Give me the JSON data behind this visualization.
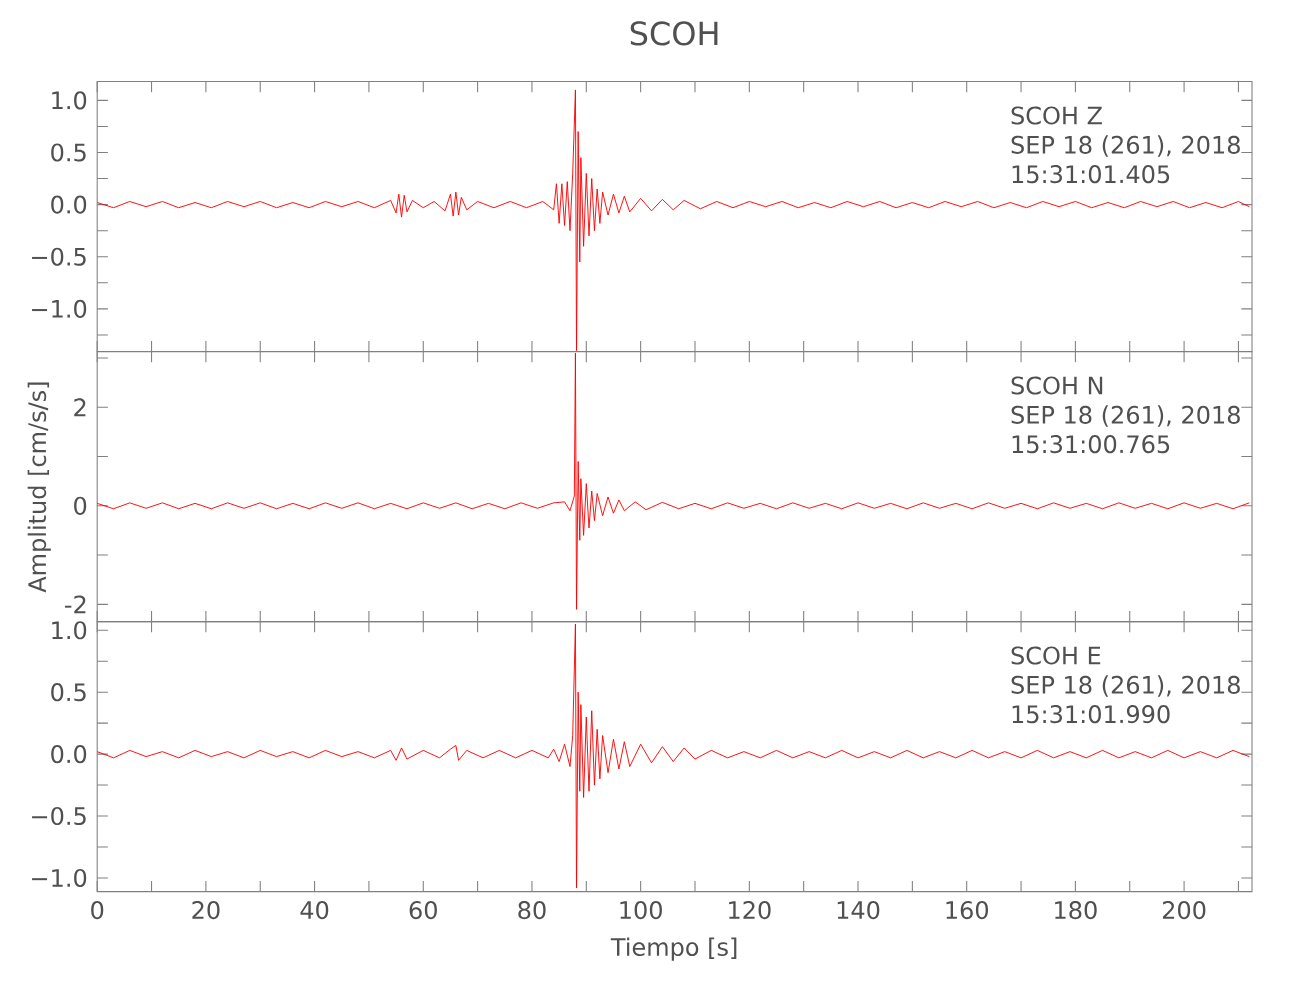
{
  "chart_data": [
    {
      "type": "line",
      "title": "SCOH",
      "annotations": [
        "SCOH   Z",
        "SEP 18 (261), 2018",
        "15:31:01.405"
      ],
      "color": "#ff0000",
      "tick_labels": "y",
      "xlim": [
        0,
        212.5
      ],
      "ylim": [
        -1.41,
        1.18
      ],
      "xticks": [
        0,
        {
          "value": 10,
          "label": null
        },
        20,
        {
          "value": 30,
          "label": null
        },
        40,
        {
          "value": 50,
          "label": null
        },
        60,
        {
          "value": 70,
          "label": null
        },
        80,
        {
          "value": 90,
          "label": null
        },
        100,
        {
          "value": 110,
          "label": null
        },
        120,
        {
          "value": 130,
          "label": null
        },
        140,
        {
          "value": 150,
          "label": null
        },
        160,
        {
          "value": 170,
          "label": null
        },
        180,
        {
          "value": 190,
          "label": null
        },
        200,
        {
          "value": 210,
          "label": null
        }
      ],
      "yticks": [
        {
          "value": -1.25,
          "label": null
        },
        {
          "value": -1.0,
          "label": "−1.0"
        },
        {
          "value": -0.75,
          "label": null
        },
        {
          "value": -0.5,
          "label": "−0.5"
        },
        {
          "value": -0.25,
          "label": null
        },
        {
          "value": 0,
          "label": "0.0"
        },
        {
          "value": 0.25,
          "label": null
        },
        {
          "value": 0.5,
          "label": "0.5"
        },
        {
          "value": 0.75,
          "label": null
        },
        {
          "value": 1.0,
          "label": "1.0"
        }
      ],
      "x": [
        0,
        3,
        6,
        9,
        12,
        15,
        18,
        21,
        24,
        27,
        30,
        33,
        36,
        39,
        42,
        45,
        48,
        51,
        54,
        55,
        55.5,
        56,
        56.5,
        57,
        58,
        60,
        62,
        64,
        65,
        65.5,
        66,
        66.5,
        67,
        68,
        70,
        73,
        76,
        79,
        82,
        84,
        84.5,
        85,
        85.5,
        86,
        86.5,
        87,
        87.5,
        88,
        88.2,
        88.5,
        88.8,
        89,
        89.5,
        90,
        90.5,
        91,
        91.5,
        92,
        92.5,
        93,
        94,
        95,
        96,
        97,
        98,
        100,
        102,
        104,
        106,
        108,
        111,
        114,
        117,
        120,
        123,
        126,
        129,
        132,
        135,
        138,
        141,
        144,
        147,
        150,
        153,
        156,
        159,
        162,
        165,
        168,
        171,
        174,
        177,
        180,
        183,
        186,
        189,
        192,
        195,
        198,
        201,
        204,
        207,
        210,
        212
      ],
      "values": [
        0.02,
        -0.03,
        0.03,
        -0.02,
        0.03,
        -0.03,
        0.02,
        -0.03,
        0.03,
        -0.02,
        0.03,
        -0.03,
        0.02,
        -0.03,
        0.03,
        -0.02,
        0.03,
        -0.03,
        0.04,
        -0.08,
        0.1,
        -0.12,
        0.09,
        -0.07,
        0.04,
        -0.03,
        0.03,
        -0.06,
        0.1,
        -0.11,
        0.12,
        -0.1,
        0.07,
        -0.05,
        0.03,
        -0.03,
        0.03,
        -0.03,
        0.03,
        -0.05,
        0.2,
        -0.18,
        0.2,
        -0.2,
        0.22,
        -0.25,
        0.3,
        1.1,
        -1.4,
        0.7,
        -0.55,
        0.45,
        -0.4,
        0.3,
        -0.3,
        0.25,
        -0.25,
        0.15,
        -0.18,
        0.12,
        -0.1,
        0.1,
        -0.08,
        0.08,
        -0.07,
        0.06,
        -0.06,
        0.05,
        -0.05,
        0.04,
        -0.04,
        0.03,
        -0.03,
        0.03,
        -0.02,
        0.03,
        -0.03,
        0.02,
        -0.03,
        0.03,
        -0.02,
        0.03,
        -0.03,
        0.02,
        -0.03,
        0.03,
        -0.02,
        0.03,
        -0.03,
        0.02,
        -0.03,
        0.03,
        -0.02,
        0.03,
        -0.03,
        0.02,
        -0.03,
        0.03,
        -0.02,
        0.03,
        -0.03,
        0.02,
        -0.03,
        0.03,
        -0.02
      ]
    },
    {
      "type": "line",
      "ylabel": "Amplitud [cm/s/s]",
      "annotations": [
        "SCOH   N",
        "SEP 18 (261), 2018",
        "15:31:00.765"
      ],
      "color": "#ff0000",
      "tick_labels": "y",
      "xlim": [
        0,
        212.5
      ],
      "ylim": [
        -2.35,
        3.13
      ],
      "xticks": [
        0,
        {
          "value": 10,
          "label": null
        },
        20,
        {
          "value": 30,
          "label": null
        },
        40,
        {
          "value": 50,
          "label": null
        },
        60,
        {
          "value": 70,
          "label": null
        },
        80,
        {
          "value": 90,
          "label": null
        },
        100,
        {
          "value": 110,
          "label": null
        },
        120,
        {
          "value": 130,
          "label": null
        },
        140,
        {
          "value": 150,
          "label": null
        },
        160,
        {
          "value": 170,
          "label": null
        },
        180,
        {
          "value": 190,
          "label": null
        },
        200,
        {
          "value": 210,
          "label": null
        }
      ],
      "yticks": [
        -2,
        {
          "value": -1,
          "label": null
        },
        0,
        {
          "value": 1,
          "label": null
        },
        2,
        {
          "value": 3,
          "label": null
        }
      ],
      "x": [
        0,
        3,
        6,
        9,
        12,
        15,
        18,
        21,
        24,
        27,
        30,
        33,
        36,
        39,
        42,
        45,
        48,
        51,
        54,
        57,
        60,
        63,
        66,
        69,
        72,
        75,
        78,
        81,
        84,
        86,
        87,
        87.8,
        88,
        88.2,
        88.5,
        88.8,
        89,
        89.5,
        90,
        90.5,
        91,
        91.5,
        92,
        93,
        94,
        95,
        96,
        97,
        99,
        101,
        104,
        107,
        110,
        113,
        116,
        119,
        122,
        125,
        128,
        131,
        134,
        137,
        140,
        143,
        146,
        149,
        152,
        155,
        158,
        161,
        164,
        167,
        170,
        173,
        176,
        179,
        182,
        185,
        188,
        191,
        194,
        197,
        200,
        203,
        206,
        209,
        212
      ],
      "values": [
        0.05,
        -0.06,
        0.06,
        -0.05,
        0.06,
        -0.06,
        0.05,
        -0.06,
        0.06,
        -0.05,
        0.06,
        -0.06,
        0.05,
        -0.06,
        0.06,
        -0.05,
        0.06,
        -0.06,
        0.05,
        -0.06,
        0.06,
        -0.05,
        0.06,
        -0.06,
        0.05,
        -0.06,
        0.06,
        -0.05,
        0.06,
        0.08,
        -0.1,
        0.2,
        3.1,
        -2.1,
        0.9,
        -0.7,
        0.55,
        -0.6,
        0.45,
        -0.45,
        0.3,
        -0.3,
        0.25,
        -0.2,
        0.18,
        -0.15,
        0.12,
        -0.1,
        0.08,
        -0.08,
        0.07,
        -0.06,
        0.05,
        -0.06,
        0.06,
        -0.05,
        0.05,
        -0.06,
        0.06,
        -0.05,
        0.05,
        -0.06,
        0.06,
        -0.05,
        0.05,
        -0.06,
        0.06,
        -0.05,
        0.05,
        -0.06,
        0.06,
        -0.05,
        0.05,
        -0.06,
        0.06,
        -0.05,
        0.05,
        -0.06,
        0.06,
        -0.05,
        0.05,
        -0.06,
        0.06,
        -0.05,
        0.05,
        -0.06,
        0.06
      ]
    },
    {
      "type": "line",
      "xlabel": "Tiempo [s]",
      "annotations": [
        "SCOH   E",
        "SEP 18 (261), 2018",
        "15:31:01.990"
      ],
      "color": "#ff0000",
      "xlim": [
        0,
        212.5
      ],
      "ylim": [
        -1.11,
        1.07
      ],
      "xticks": [
        0,
        {
          "value": 10,
          "label": null
        },
        20,
        {
          "value": 30,
          "label": null
        },
        40,
        {
          "value": 50,
          "label": null
        },
        60,
        {
          "value": 70,
          "label": null
        },
        80,
        {
          "value": 90,
          "label": null
        },
        100,
        {
          "value": 110,
          "label": null
        },
        120,
        {
          "value": 130,
          "label": null
        },
        140,
        {
          "value": 150,
          "label": null
        },
        160,
        {
          "value": 170,
          "label": null
        },
        180,
        {
          "value": 190,
          "label": null
        },
        200,
        {
          "value": 210,
          "label": null
        }
      ],
      "yticks": [
        {
          "value": -1.0,
          "label": "−1.0"
        },
        {
          "value": -0.75,
          "label": null
        },
        {
          "value": -0.5,
          "label": "−0.5"
        },
        {
          "value": -0.25,
          "label": null
        },
        {
          "value": 0,
          "label": "0.0"
        },
        {
          "value": 0.25,
          "label": null
        },
        {
          "value": 0.5,
          "label": "0.5"
        },
        {
          "value": 0.75,
          "label": null
        },
        {
          "value": 1.0,
          "label": "1.0"
        }
      ],
      "x": [
        0,
        3,
        6,
        9,
        12,
        15,
        18,
        21,
        24,
        27,
        30,
        33,
        36,
        39,
        42,
        45,
        48,
        51,
        54,
        55,
        56,
        57,
        60,
        63,
        65,
        66,
        66.5,
        68,
        71,
        74,
        77,
        80,
        83,
        84,
        85,
        86,
        87,
        87.5,
        88,
        88.2,
        88.5,
        88.8,
        89,
        89.5,
        90,
        90.5,
        91,
        91.5,
        92,
        92.5,
        93,
        94,
        95,
        96,
        97,
        98,
        100,
        102,
        104,
        106,
        108,
        110,
        113,
        116,
        119,
        122,
        125,
        128,
        131,
        134,
        137,
        140,
        143,
        146,
        149,
        152,
        155,
        158,
        161,
        164,
        167,
        170,
        173,
        176,
        179,
        182,
        185,
        188,
        191,
        194,
        197,
        200,
        203,
        206,
        209,
        212
      ],
      "values": [
        0.02,
        -0.03,
        0.03,
        -0.02,
        0.02,
        -0.03,
        0.03,
        -0.02,
        0.02,
        -0.03,
        0.03,
        -0.02,
        0.02,
        -0.03,
        0.03,
        -0.02,
        0.02,
        -0.03,
        0.03,
        -0.05,
        0.05,
        -0.04,
        0.03,
        -0.03,
        0.04,
        0.07,
        -0.05,
        0.03,
        -0.03,
        0.03,
        -0.03,
        0.03,
        -0.03,
        0.04,
        -0.06,
        0.08,
        -0.1,
        0.15,
        1.05,
        -1.08,
        0.5,
        -0.3,
        0.4,
        -0.35,
        0.3,
        -0.3,
        0.35,
        -0.25,
        0.2,
        -0.2,
        0.15,
        -0.15,
        0.12,
        -0.12,
        0.1,
        -0.1,
        0.08,
        -0.07,
        0.06,
        -0.06,
        0.05,
        -0.04,
        0.03,
        -0.03,
        0.02,
        -0.03,
        0.03,
        -0.03,
        0.02,
        -0.03,
        0.03,
        -0.03,
        0.02,
        -0.03,
        0.03,
        -0.03,
        0.02,
        -0.03,
        0.03,
        -0.03,
        0.02,
        -0.03,
        0.03,
        -0.03,
        0.02,
        -0.03,
        0.03,
        -0.03,
        0.02,
        -0.03,
        0.03,
        -0.03,
        0.02,
        -0.03,
        0.03,
        -0.02
      ]
    }
  ]
}
